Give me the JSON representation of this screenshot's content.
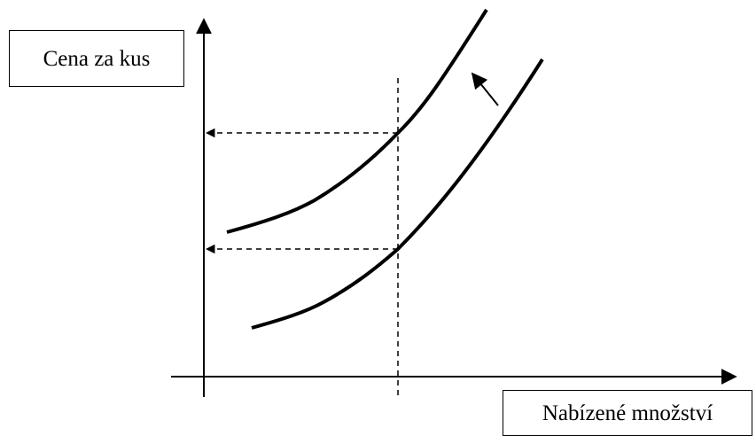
{
  "diagram": {
    "y_axis_label": "Cena za kus",
    "x_axis_label": "Nabízené množství",
    "line_color": "#000000"
  }
}
